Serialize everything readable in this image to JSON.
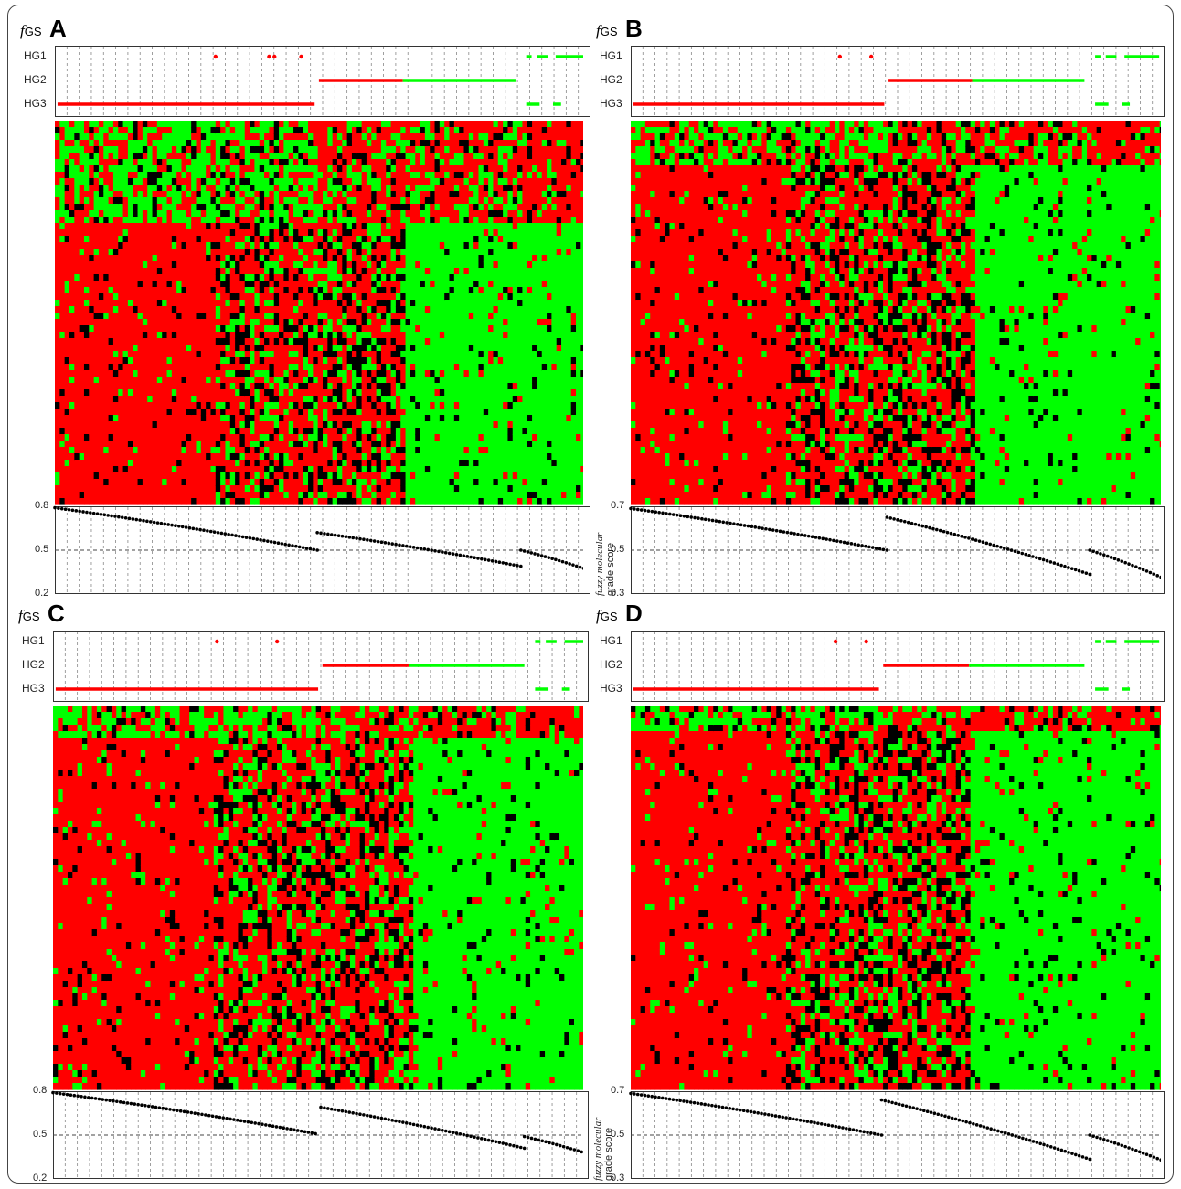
{
  "fgs_label": "fGS",
  "fgs_prefix": "f",
  "fgs_suffix": "GS",
  "axis_label_line1": "fuzzy molecular",
  "axis_label_line2": "grade score",
  "colors": {
    "red": "#ff0000",
    "green": "#00ff00",
    "black": "#000000"
  },
  "chart_data": [
    {
      "panel": "A",
      "type": "heatmap",
      "row_labels": [
        "HG1",
        "HG2",
        "HG3"
      ],
      "segments": {
        "HG3": [
          0,
          0.49
        ],
        "HG2": [
          0.49,
          0.87
        ],
        "HG1": [
          0.87,
          1.0
        ]
      },
      "heatmap_top_fraction": 0.27,
      "score_ylim": [
        0.2,
        0.8
      ],
      "score_yticks": [
        "0.8",
        "0.5",
        "0.2"
      ],
      "score_segments": [
        {
          "group": "HG3",
          "x": [
            0,
            0.49
          ],
          "y": [
            0.79,
            0.5
          ]
        },
        {
          "group": "HG2",
          "x": [
            0.49,
            0.87
          ],
          "y": [
            0.62,
            0.39
          ]
        },
        {
          "group": "HG1",
          "x": [
            0.87,
            1.0
          ],
          "y": [
            0.5,
            0.36
          ]
        }
      ],
      "reference_line": 0.5
    },
    {
      "panel": "B",
      "type": "heatmap",
      "row_labels": [
        "HG1",
        "HG2",
        "HG3"
      ],
      "segments": {
        "HG3": [
          0,
          0.48
        ],
        "HG2": [
          0.48,
          0.86
        ],
        "HG1": [
          0.86,
          1.0
        ]
      },
      "heatmap_top_fraction": 0.11,
      "score_ylim": [
        0.3,
        0.7
      ],
      "score_yticks": [
        "0.7",
        "0.5",
        "0.3"
      ],
      "score_segments": [
        {
          "group": "HG3",
          "x": [
            0,
            0.48
          ],
          "y": [
            0.69,
            0.5
          ]
        },
        {
          "group": "HG2",
          "x": [
            0.48,
            0.86
          ],
          "y": [
            0.65,
            0.39
          ]
        },
        {
          "group": "HG1",
          "x": [
            0.86,
            1.0
          ],
          "y": [
            0.5,
            0.37
          ]
        }
      ],
      "reference_line": 0.5
    },
    {
      "panel": "C",
      "type": "heatmap",
      "row_labels": [
        "HG1",
        "HG2",
        "HG3"
      ],
      "segments": {
        "HG3": [
          0,
          0.5
        ],
        "HG2": [
          0.5,
          0.89
        ],
        "HG1": [
          0.89,
          1.0
        ]
      },
      "heatmap_top_fraction": 0.075,
      "score_ylim": [
        0.2,
        0.8
      ],
      "score_yticks": [
        "0.8",
        "0.5",
        "0.2"
      ],
      "score_segments": [
        {
          "group": "HG3",
          "x": [
            0,
            0.49
          ],
          "y": [
            0.79,
            0.51
          ]
        },
        {
          "group": "HG2",
          "x": [
            0.5,
            0.88
          ],
          "y": [
            0.69,
            0.41
          ]
        },
        {
          "group": "HG1",
          "x": [
            0.88,
            1.0
          ],
          "y": [
            0.49,
            0.37
          ]
        }
      ],
      "reference_line": 0.5
    },
    {
      "panel": "D",
      "type": "heatmap",
      "row_labels": [
        "HG1",
        "HG2",
        "HG3"
      ],
      "segments": {
        "HG3": [
          0,
          0.47
        ],
        "HG2": [
          0.47,
          0.86
        ],
        "HG1": [
          0.86,
          1.0
        ]
      },
      "heatmap_top_fraction": 0.06,
      "score_ylim": [
        0.3,
        0.7
      ],
      "score_yticks": [
        "0.7",
        "0.5",
        "0.3"
      ],
      "score_segments": [
        {
          "group": "HG3",
          "x": [
            0,
            0.47
          ],
          "y": [
            0.69,
            0.5
          ]
        },
        {
          "group": "HG2",
          "x": [
            0.47,
            0.86
          ],
          "y": [
            0.66,
            0.39
          ]
        },
        {
          "group": "HG1",
          "x": [
            0.86,
            1.0
          ],
          "y": [
            0.5,
            0.38
          ]
        }
      ],
      "reference_line": 0.5
    }
  ]
}
